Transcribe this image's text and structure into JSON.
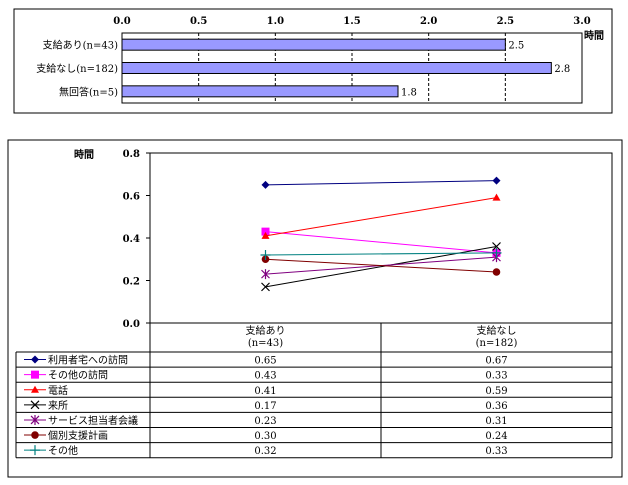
{
  "chart_data": [
    {
      "type": "bar",
      "orientation": "horizontal",
      "categories": [
        "支給あり(n=43)",
        "支給なし(n=182)",
        "無回答(n=5)"
      ],
      "values": [
        2.5,
        2.8,
        1.8
      ],
      "value_labels": [
        "2.5",
        "2.8",
        "1.8"
      ],
      "xlim": [
        0.0,
        3.0
      ],
      "xticks": [
        "0.0",
        "0.5",
        "1.0",
        "1.5",
        "2.0",
        "2.5",
        "3.0"
      ],
      "xlabel": "時間",
      "bar_color": "#9999ff",
      "grid": "vertical dashed"
    },
    {
      "type": "line",
      "ylabel": "時間",
      "ylim": [
        0.0,
        0.8
      ],
      "yticks": [
        "0.0",
        "0.2",
        "0.4",
        "0.6",
        "0.8"
      ],
      "categories": [
        "支給あり\n(n=43)",
        "支給なし\n(n=182)"
      ],
      "category_lines": [
        [
          "支給あり",
          "(n=43)"
        ],
        [
          "支給なし",
          "(n=182)"
        ]
      ],
      "legend": "data-table",
      "series": [
        {
          "name": "利用者宅への訪問",
          "values": [
            0.65,
            0.67
          ],
          "labels": [
            "0.65",
            "0.67"
          ],
          "color": "#000080",
          "marker": "diamond"
        },
        {
          "name": "その他の訪問",
          "values": [
            0.43,
            0.33
          ],
          "labels": [
            "0.43",
            "0.33"
          ],
          "color": "#ff00ff",
          "marker": "square"
        },
        {
          "name": "電話",
          "values": [
            0.41,
            0.59
          ],
          "labels": [
            "0.41",
            "0.59"
          ],
          "color": "#ff0000",
          "marker": "triangle"
        },
        {
          "name": "来所",
          "values": [
            0.17,
            0.36
          ],
          "labels": [
            "0.17",
            "0.36"
          ],
          "color": "#000000",
          "marker": "x"
        },
        {
          "name": "サービス担当者会議",
          "values": [
            0.23,
            0.31
          ],
          "labels": [
            "0.23",
            "0.31"
          ],
          "color": "#800080",
          "marker": "star"
        },
        {
          "name": "個別支援計画",
          "values": [
            0.3,
            0.24
          ],
          "labels": [
            "0.30",
            "0.24"
          ],
          "color": "#800000",
          "marker": "circle"
        },
        {
          "name": "その他",
          "values": [
            0.32,
            0.33
          ],
          "labels": [
            "0.32",
            "0.33"
          ],
          "color": "#008080",
          "marker": "plus"
        }
      ]
    }
  ]
}
